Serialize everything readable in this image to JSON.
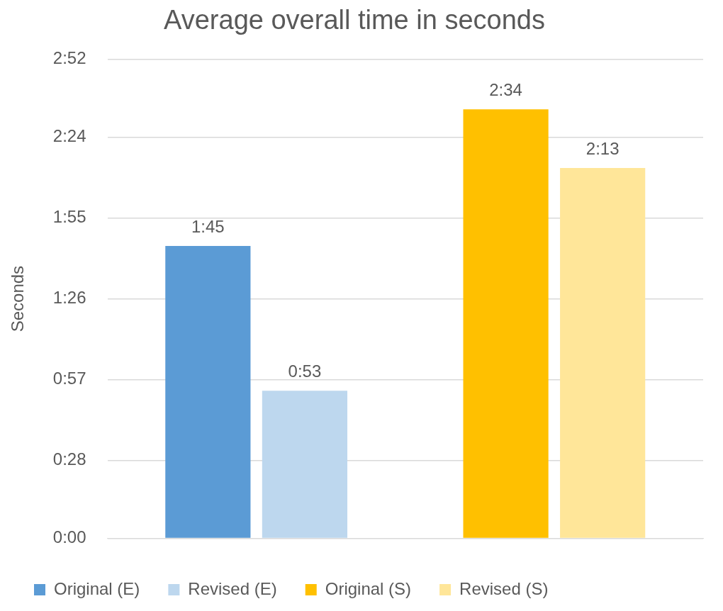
{
  "chart_data": {
    "type": "bar",
    "title": "Average overall time in seconds",
    "ylabel": "Seconds",
    "categories": [
      null,
      null
    ],
    "series": [
      {
        "name": "Original (E)",
        "color": "#5b9bd5",
        "values": [
          105,
          null
        ],
        "value_labels": [
          "1:45",
          null
        ]
      },
      {
        "name": "Revised (E)",
        "color": "#bdd7ee",
        "values": [
          53,
          null
        ],
        "value_labels": [
          "0:53",
          null
        ]
      },
      {
        "name": "Original (S)",
        "color": "#ffc000",
        "values": [
          null,
          154
        ],
        "value_labels": [
          null,
          "2:34"
        ]
      },
      {
        "name": "Revised (S)",
        "color": "#ffe699",
        "values": [
          null,
          133
        ],
        "value_labels": [
          null,
          "2:13"
        ]
      }
    ],
    "ylim": [
      0,
      172
    ],
    "yticks": [
      {
        "value": 0,
        "label": "0:00"
      },
      {
        "value": 28,
        "label": "0:28"
      },
      {
        "value": 57,
        "label": "0:57"
      },
      {
        "value": 86,
        "label": "1:26"
      },
      {
        "value": 115,
        "label": "1:55"
      },
      {
        "value": 144,
        "label": "2:24"
      },
      {
        "value": 172,
        "label": "2:52"
      }
    ],
    "grid": "y",
    "legend": "bottom"
  }
}
